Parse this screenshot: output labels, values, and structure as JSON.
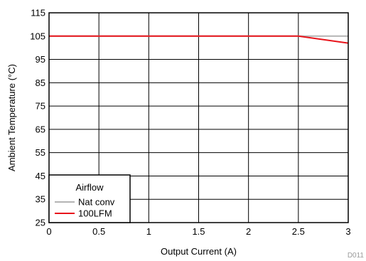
{
  "chart_data": {
    "type": "line",
    "xlabel": "Output Current (A)",
    "ylabel": "Ambient Temperature (°C)",
    "xlim": [
      0,
      3
    ],
    "ylim": [
      25,
      115
    ],
    "x_ticks": [
      0,
      0.5,
      1,
      1.5,
      2,
      2.5,
      3
    ],
    "x_tick_labels": [
      "0",
      "0.5",
      "1",
      "1.5",
      "2",
      "2.5",
      "3"
    ],
    "y_ticks": [
      25,
      35,
      45,
      55,
      65,
      75,
      85,
      95,
      105,
      115
    ],
    "y_tick_labels": [
      "25",
      "35",
      "45",
      "55",
      "65",
      "75",
      "85",
      "95",
      "105",
      "115"
    ],
    "grid": true,
    "legend": {
      "title": "Airflow",
      "placement": "bottom-left"
    },
    "series": [
      {
        "name": "Nat conv",
        "color": "#b4b4b4",
        "x": [
          0,
          2.5,
          3
        ],
        "y": [
          105,
          105,
          105
        ]
      },
      {
        "name": "100LFM",
        "color": "#e8141b",
        "x": [
          0,
          2.5,
          3
        ],
        "y": [
          105,
          105,
          102
        ]
      }
    ],
    "figure_code": "D011"
  }
}
